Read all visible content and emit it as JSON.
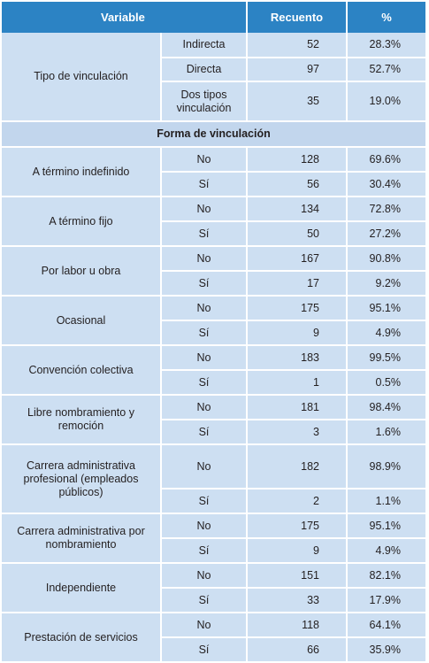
{
  "header": {
    "variable": "Variable",
    "recuento": "Recuento",
    "pct": "%"
  },
  "tipo": {
    "label": "Tipo de vinculación",
    "rows": [
      {
        "opt": "Indirecta",
        "n": "52",
        "pct": "28.3%"
      },
      {
        "opt": "Directa",
        "n": "97",
        "pct": "52.7%"
      },
      {
        "opt": "Dos tipos vinculación",
        "n": "35",
        "pct": "19.0%"
      }
    ]
  },
  "section_title": "Forma de vinculación",
  "forma": [
    {
      "label": "A término indefinido",
      "no": "No",
      "no_n": "128",
      "no_pct": "69.6%",
      "si": "Sí",
      "si_n": "56",
      "si_pct": "30.4%"
    },
    {
      "label": "A término fijo",
      "no": "No",
      "no_n": "134",
      "no_pct": "72.8%",
      "si": "Sí",
      "si_n": "50",
      "si_pct": "27.2%"
    },
    {
      "label": "Por labor u obra",
      "no": "No",
      "no_n": "167",
      "no_pct": "90.8%",
      "si": "Sí",
      "si_n": "17",
      "si_pct": "9.2%"
    },
    {
      "label": "Ocasional",
      "no": "No",
      "no_n": "175",
      "no_pct": "95.1%",
      "si": "Sí",
      "si_n": "9",
      "si_pct": "4.9%"
    },
    {
      "label": "Convención colectiva",
      "no": "No",
      "no_n": "183",
      "no_pct": "99.5%",
      "si": "Sí",
      "si_n": "1",
      "si_pct": "0.5%"
    },
    {
      "label": "Libre nombramiento y remoción",
      "no": "No",
      "no_n": "181",
      "no_pct": "98.4%",
      "si": "Sí",
      "si_n": "3",
      "si_pct": "1.6%"
    },
    {
      "label": "Carrera administrativa profesional (empleados públicos)",
      "no": "No",
      "no_n": "182",
      "no_pct": "98.9%",
      "si": "Sí",
      "si_n": "2",
      "si_pct": "1.1%"
    },
    {
      "label": "Carrera administrativa por nombramiento",
      "no": "No",
      "no_n": "175",
      "no_pct": "95.1%",
      "si": "Sí",
      "si_n": "9",
      "si_pct": "4.9%"
    },
    {
      "label": "Independiente",
      "no": "No",
      "no_n": "151",
      "no_pct": "82.1%",
      "si": "Sí",
      "si_n": "33",
      "si_pct": "17.9%"
    },
    {
      "label": "Prestación de servicios",
      "no": "No",
      "no_n": "118",
      "no_pct": "64.1%",
      "si": "Sí",
      "si_n": "66",
      "si_pct": "35.9%"
    }
  ]
}
